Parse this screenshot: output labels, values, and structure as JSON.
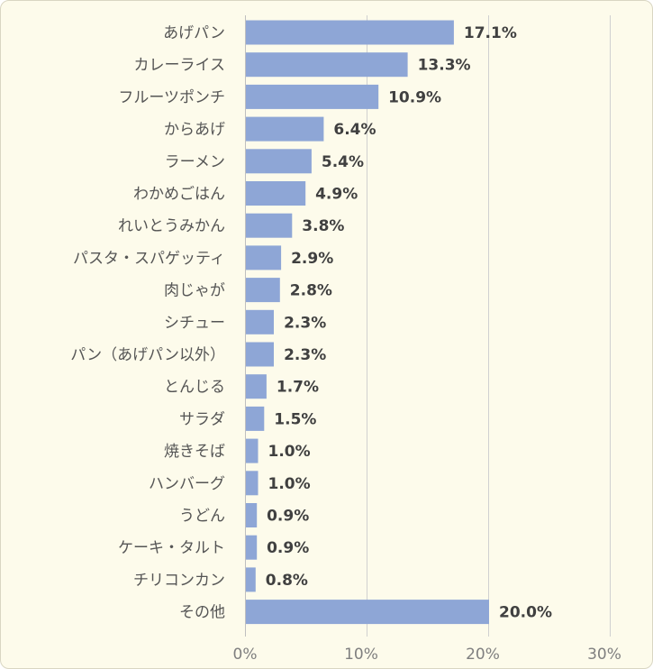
{
  "chart_data": {
    "type": "bar",
    "orientation": "horizontal",
    "categories": [
      "あげパン",
      "カレーライス",
      "フルーツポンチ",
      "からあげ",
      "ラーメン",
      "わかめごはん",
      "れいとうみかん",
      "パスタ・スパゲッティ",
      "肉じゃが",
      "シチュー",
      "パン（あげパン以外）",
      "とんじる",
      "サラダ",
      "焼きそば",
      "ハンバーグ",
      "うどん",
      "ケーキ・タルト",
      "チリコンカン",
      "その他"
    ],
    "values": [
      17.1,
      13.3,
      10.9,
      6.4,
      5.4,
      4.9,
      3.8,
      2.9,
      2.8,
      2.3,
      2.3,
      1.7,
      1.5,
      1.0,
      1.0,
      0.9,
      0.9,
      0.8,
      20.0
    ],
    "value_labels": [
      "17.1%",
      "13.3%",
      "10.9%",
      "6.4%",
      "5.4%",
      "4.9%",
      "3.8%",
      "2.9%",
      "2.8%",
      "2.3%",
      "2.3%",
      "1.7%",
      "1.5%",
      "1.0%",
      "1.0%",
      "0.9%",
      "0.9%",
      "0.8%",
      "20.0%"
    ],
    "xlim": [
      0,
      30
    ],
    "x_ticks": [
      0,
      10,
      20,
      30
    ],
    "x_tick_labels": [
      "0%",
      "10%",
      "20%",
      "30%"
    ],
    "grid": true,
    "title": "",
    "xlabel": "",
    "ylabel": "",
    "colors": {
      "bar": "#8ea6d6",
      "background": "#fdfbeb",
      "grid": "#d0d0d0"
    }
  }
}
